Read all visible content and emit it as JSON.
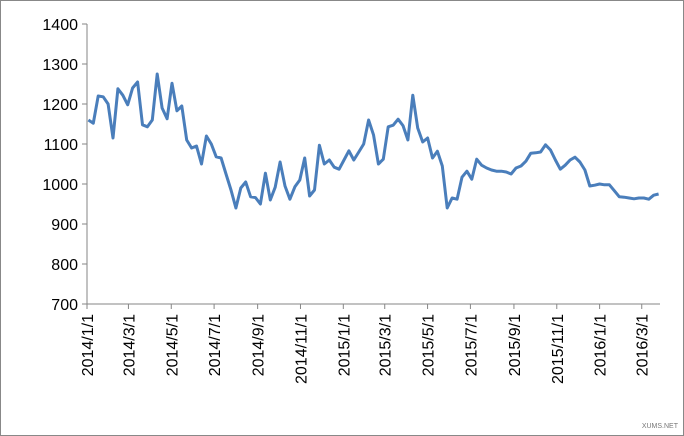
{
  "chart_data": {
    "type": "line",
    "x": [
      "2014/1/3",
      "2014/1/10",
      "2014/1/17",
      "2014/1/24",
      "2014/1/31",
      "2014/2/7",
      "2014/2/14",
      "2014/2/21",
      "2014/2/28",
      "2014/3/7",
      "2014/3/14",
      "2014/3/21",
      "2014/3/28",
      "2014/4/4",
      "2014/4/11",
      "2014/4/18",
      "2014/4/25",
      "2014/5/2",
      "2014/5/9",
      "2014/5/16",
      "2014/5/23",
      "2014/5/30",
      "2014/6/6",
      "2014/6/13",
      "2014/6/20",
      "2014/6/27",
      "2014/7/4",
      "2014/7/11",
      "2014/7/18",
      "2014/7/25",
      "2014/8/1",
      "2014/8/8",
      "2014/8/15",
      "2014/8/22",
      "2014/8/29",
      "2014/9/5",
      "2014/9/12",
      "2014/9/19",
      "2014/9/26",
      "2014/10/3",
      "2014/10/10",
      "2014/10/17",
      "2014/10/24",
      "2014/10/31",
      "2014/11/7",
      "2014/11/14",
      "2014/11/21",
      "2014/11/28",
      "2014/12/5",
      "2014/12/12",
      "2014/12/19",
      "2014/12/26",
      "2015/1/2",
      "2015/1/9",
      "2015/1/16",
      "2015/1/23",
      "2015/1/30",
      "2015/2/6",
      "2015/2/13",
      "2015/2/20",
      "2015/2/27",
      "2015/3/6",
      "2015/3/13",
      "2015/3/20",
      "2015/3/27",
      "2015/4/3",
      "2015/4/10",
      "2015/4/17",
      "2015/4/24",
      "2015/5/1",
      "2015/5/8",
      "2015/5/15",
      "2015/5/22",
      "2015/5/29",
      "2015/6/5",
      "2015/6/12",
      "2015/6/19",
      "2015/6/26",
      "2015/7/3",
      "2015/7/10",
      "2015/7/17",
      "2015/7/24",
      "2015/7/31",
      "2015/8/7",
      "2015/8/14",
      "2015/8/21",
      "2015/8/28",
      "2015/9/4",
      "2015/9/11",
      "2015/9/18",
      "2015/9/25",
      "2015/10/2",
      "2015/10/9",
      "2015/10/16",
      "2015/10/23",
      "2015/10/30",
      "2015/11/6",
      "2015/11/13",
      "2015/11/20",
      "2015/11/27",
      "2015/12/4",
      "2015/12/11",
      "2015/12/18",
      "2015/12/25",
      "2016/1/1",
      "2016/1/8",
      "2016/1/15",
      "2016/1/22",
      "2016/1/29",
      "2016/2/5",
      "2016/2/12",
      "2016/2/19",
      "2016/2/26",
      "2016/3/4",
      "2016/3/11",
      "2016/3/18",
      "2016/3/25"
    ],
    "series": [
      {
        "color": "#4a7ebb",
        "values": [
          1160,
          1152,
          1220,
          1218,
          1200,
          1115,
          1238,
          1222,
          1198,
          1240,
          1255,
          1148,
          1143,
          1160,
          1275,
          1190,
          1163,
          1252,
          1183,
          1195,
          1110,
          1090,
          1095,
          1050,
          1120,
          1100,
          1068,
          1065,
          1025,
          985,
          940,
          990,
          1005,
          968,
          966,
          950,
          1027,
          960,
          992,
          1055,
          995,
          962,
          993,
          1010,
          1065,
          970,
          985,
          1097,
          1050,
          1060,
          1042,
          1037,
          1060,
          1083,
          1060,
          1080,
          1100,
          1160,
          1123,
          1050,
          1062,
          1143,
          1147,
          1162,
          1146,
          1110,
          1222,
          1140,
          1105,
          1115,
          1065,
          1082,
          1045,
          940,
          965,
          962,
          1017,
          1032,
          1012,
          1062,
          1047,
          1040,
          1035,
          1032,
          1032,
          1030,
          1025,
          1040,
          1045,
          1057,
          1077,
          1078,
          1080,
          1098,
          1085,
          1060,
          1037,
          1047,
          1060,
          1067,
          1055,
          1035,
          995,
          997,
          1000,
          998,
          998,
          983,
          968,
          967,
          965,
          963,
          965,
          965,
          962,
          972,
          975
        ]
      }
    ],
    "xlim": [
      "2014/1/1",
      "2016/3/27"
    ],
    "xticks": [
      "2014/1/1",
      "2014/3/1",
      "2014/5/1",
      "2014/7/1",
      "2014/9/1",
      "2014/11/1",
      "2015/1/1",
      "2015/3/1",
      "2015/5/1",
      "2015/7/1",
      "2015/9/1",
      "2015/11/1",
      "2016/1/1",
      "2016/3/1"
    ],
    "ylim": [
      700,
      1400
    ],
    "yticks": [
      700,
      800,
      900,
      1000,
      1100,
      1200,
      1300,
      1400
    ],
    "grid": false,
    "watermark": "XUMS.NET"
  }
}
